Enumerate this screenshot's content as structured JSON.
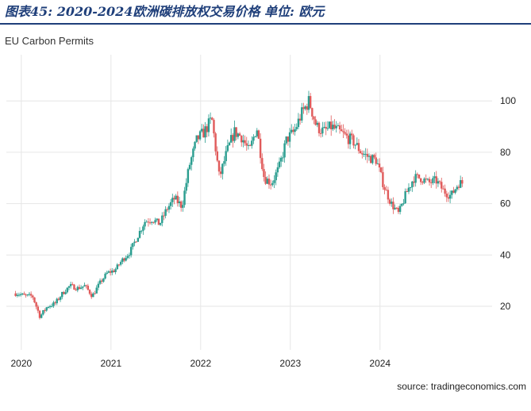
{
  "caption": "图表45:  2020-2024欧洲碳排放权交易价格 单位:  欧元",
  "colors": {
    "up": "#2a9d8f",
    "down": "#e05a5a",
    "grid": "#e6e6e6",
    "caption": "#1f3f7a"
  },
  "chart_data": {
    "type": "candlestick",
    "title": "EU Carbon Permits",
    "source": "source: tradingeconomics.com",
    "xlabel": "",
    "ylabel": "",
    "x_ticks": [
      "2020",
      "2021",
      "2022",
      "2023",
      "2024"
    ],
    "y_ticks": [
      20,
      40,
      60,
      80,
      100
    ],
    "xlim": [
      "2019-11",
      "2025-04"
    ],
    "ylim": [
      3,
      118
    ],
    "axis_side": "right",
    "grid": true,
    "series": [
      {
        "x": [
          "2019-12",
          "2020-01",
          "2020-02",
          "2020-03",
          "2020-04",
          "2020-05",
          "2020-06",
          "2020-07",
          "2020-08",
          "2020-09",
          "2020-10",
          "2020-11",
          "2020-12",
          "2021-01",
          "2021-02",
          "2021-03",
          "2021-04",
          "2021-05",
          "2021-06",
          "2021-07",
          "2021-08",
          "2021-09",
          "2021-10",
          "2021-11",
          "2021-12",
          "2022-01",
          "2022-02",
          "2022-03",
          "2022-04",
          "2022-05",
          "2022-06",
          "2022-07",
          "2022-08",
          "2022-09",
          "2022-10",
          "2022-11",
          "2022-12",
          "2023-01",
          "2023-02",
          "2023-03",
          "2023-04",
          "2023-05",
          "2023-06",
          "2023-07",
          "2023-08",
          "2023-09",
          "2023-10",
          "2023-11",
          "2023-12",
          "2024-01",
          "2024-02",
          "2024-03",
          "2024-04",
          "2024-05",
          "2024-06",
          "2024-07",
          "2024-08",
          "2024-09",
          "2024-10",
          "2024-11"
        ],
        "values": [
          25,
          24,
          24,
          16,
          20,
          21,
          25,
          28,
          27,
          28,
          24,
          29,
          33,
          34,
          38,
          41,
          47,
          53,
          54,
          52,
          58,
          62,
          59,
          75,
          85,
          88,
          93,
          70,
          80,
          88,
          86,
          80,
          90,
          70,
          68,
          74,
          85,
          88,
          95,
          100,
          90,
          88,
          90,
          88,
          86,
          84,
          80,
          78,
          77,
          67,
          60,
          56,
          64,
          70,
          70,
          68,
          69,
          65,
          63,
          68
        ]
      }
    ]
  }
}
